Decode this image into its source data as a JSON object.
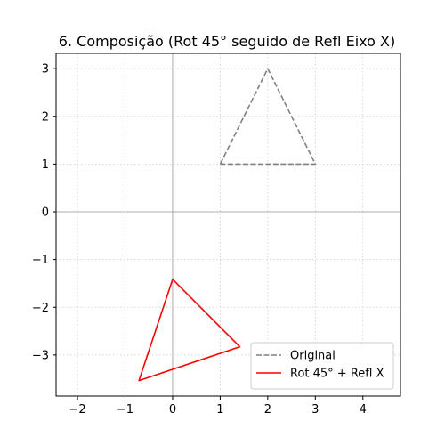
{
  "chart_data": {
    "type": "line",
    "title": "6. Composição (Rot 45° seguido de Refl Eixo X)",
    "xlabel": "",
    "ylabel": "",
    "xlim": [
      -2.45,
      4.79
    ],
    "ylim": [
      -3.86,
      3.32
    ],
    "xticks": [
      -2,
      -1,
      0,
      1,
      2,
      3,
      4
    ],
    "yticks": [
      -3,
      -2,
      -1,
      0,
      1,
      2,
      3
    ],
    "xtick_labels": [
      "−2",
      "−1",
      "0",
      "1",
      "2",
      "3",
      "4"
    ],
    "ytick_labels": [
      "−3",
      "−2",
      "−1",
      "0",
      "1",
      "2",
      "3"
    ],
    "grid": true,
    "axis_lines": {
      "x0": true,
      "y0": true
    },
    "legend_position": "lower-right",
    "series": [
      {
        "name": "Original",
        "color": "#808080",
        "style": "dashed",
        "x": [
          1,
          3,
          2,
          1
        ],
        "y": [
          1,
          1,
          3,
          1
        ]
      },
      {
        "name": "Rot 45° + Refl X",
        "color": "#ff0000",
        "style": "solid",
        "x": [
          0,
          1.414,
          -0.707,
          0
        ],
        "y": [
          -1.414,
          -2.828,
          -3.536,
          -1.414
        ]
      }
    ]
  }
}
